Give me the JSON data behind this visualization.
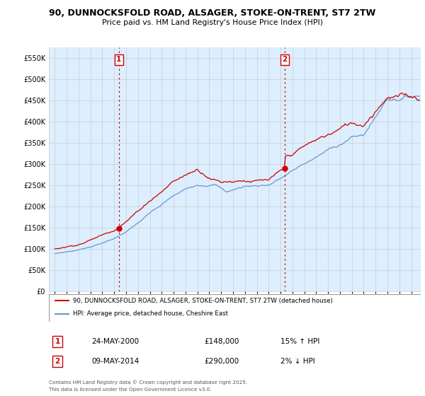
{
  "title": "90, DUNNOCKSFOLD ROAD, ALSAGER, STOKE-ON-TRENT, ST7 2TW",
  "subtitle": "Price paid vs. HM Land Registry's House Price Index (HPI)",
  "ylim": [
    0,
    575000
  ],
  "yticks": [
    0,
    50000,
    100000,
    150000,
    200000,
    250000,
    300000,
    350000,
    400000,
    450000,
    500000,
    550000
  ],
  "xlim_start": 1994.5,
  "xlim_end": 2025.8,
  "transaction1": {
    "date_num": 2000.39,
    "price": 148000,
    "label": "1",
    "date_str": "24-MAY-2000",
    "hpi_pct": "15%",
    "hpi_dir": "↑"
  },
  "transaction2": {
    "date_num": 2014.36,
    "price": 290000,
    "label": "2",
    "date_str": "09-MAY-2014",
    "hpi_pct": "2%",
    "hpi_dir": "↓"
  },
  "legend_line1": "90, DUNNOCKSFOLD ROAD, ALSAGER, STOKE-ON-TRENT, ST7 2TW (detached house)",
  "legend_line2": "HPI: Average price, detached house, Cheshire East",
  "footer1": "Contains HM Land Registry data © Crown copyright and database right 2025.",
  "footer2": "This data is licensed under the Open Government Licence v3.0.",
  "red_color": "#cc0000",
  "blue_color": "#6699cc",
  "fill_color": "#ddeeff",
  "bg_color": "#ffffff",
  "grid_color": "#cccccc",
  "vline_color": "#cc0000"
}
